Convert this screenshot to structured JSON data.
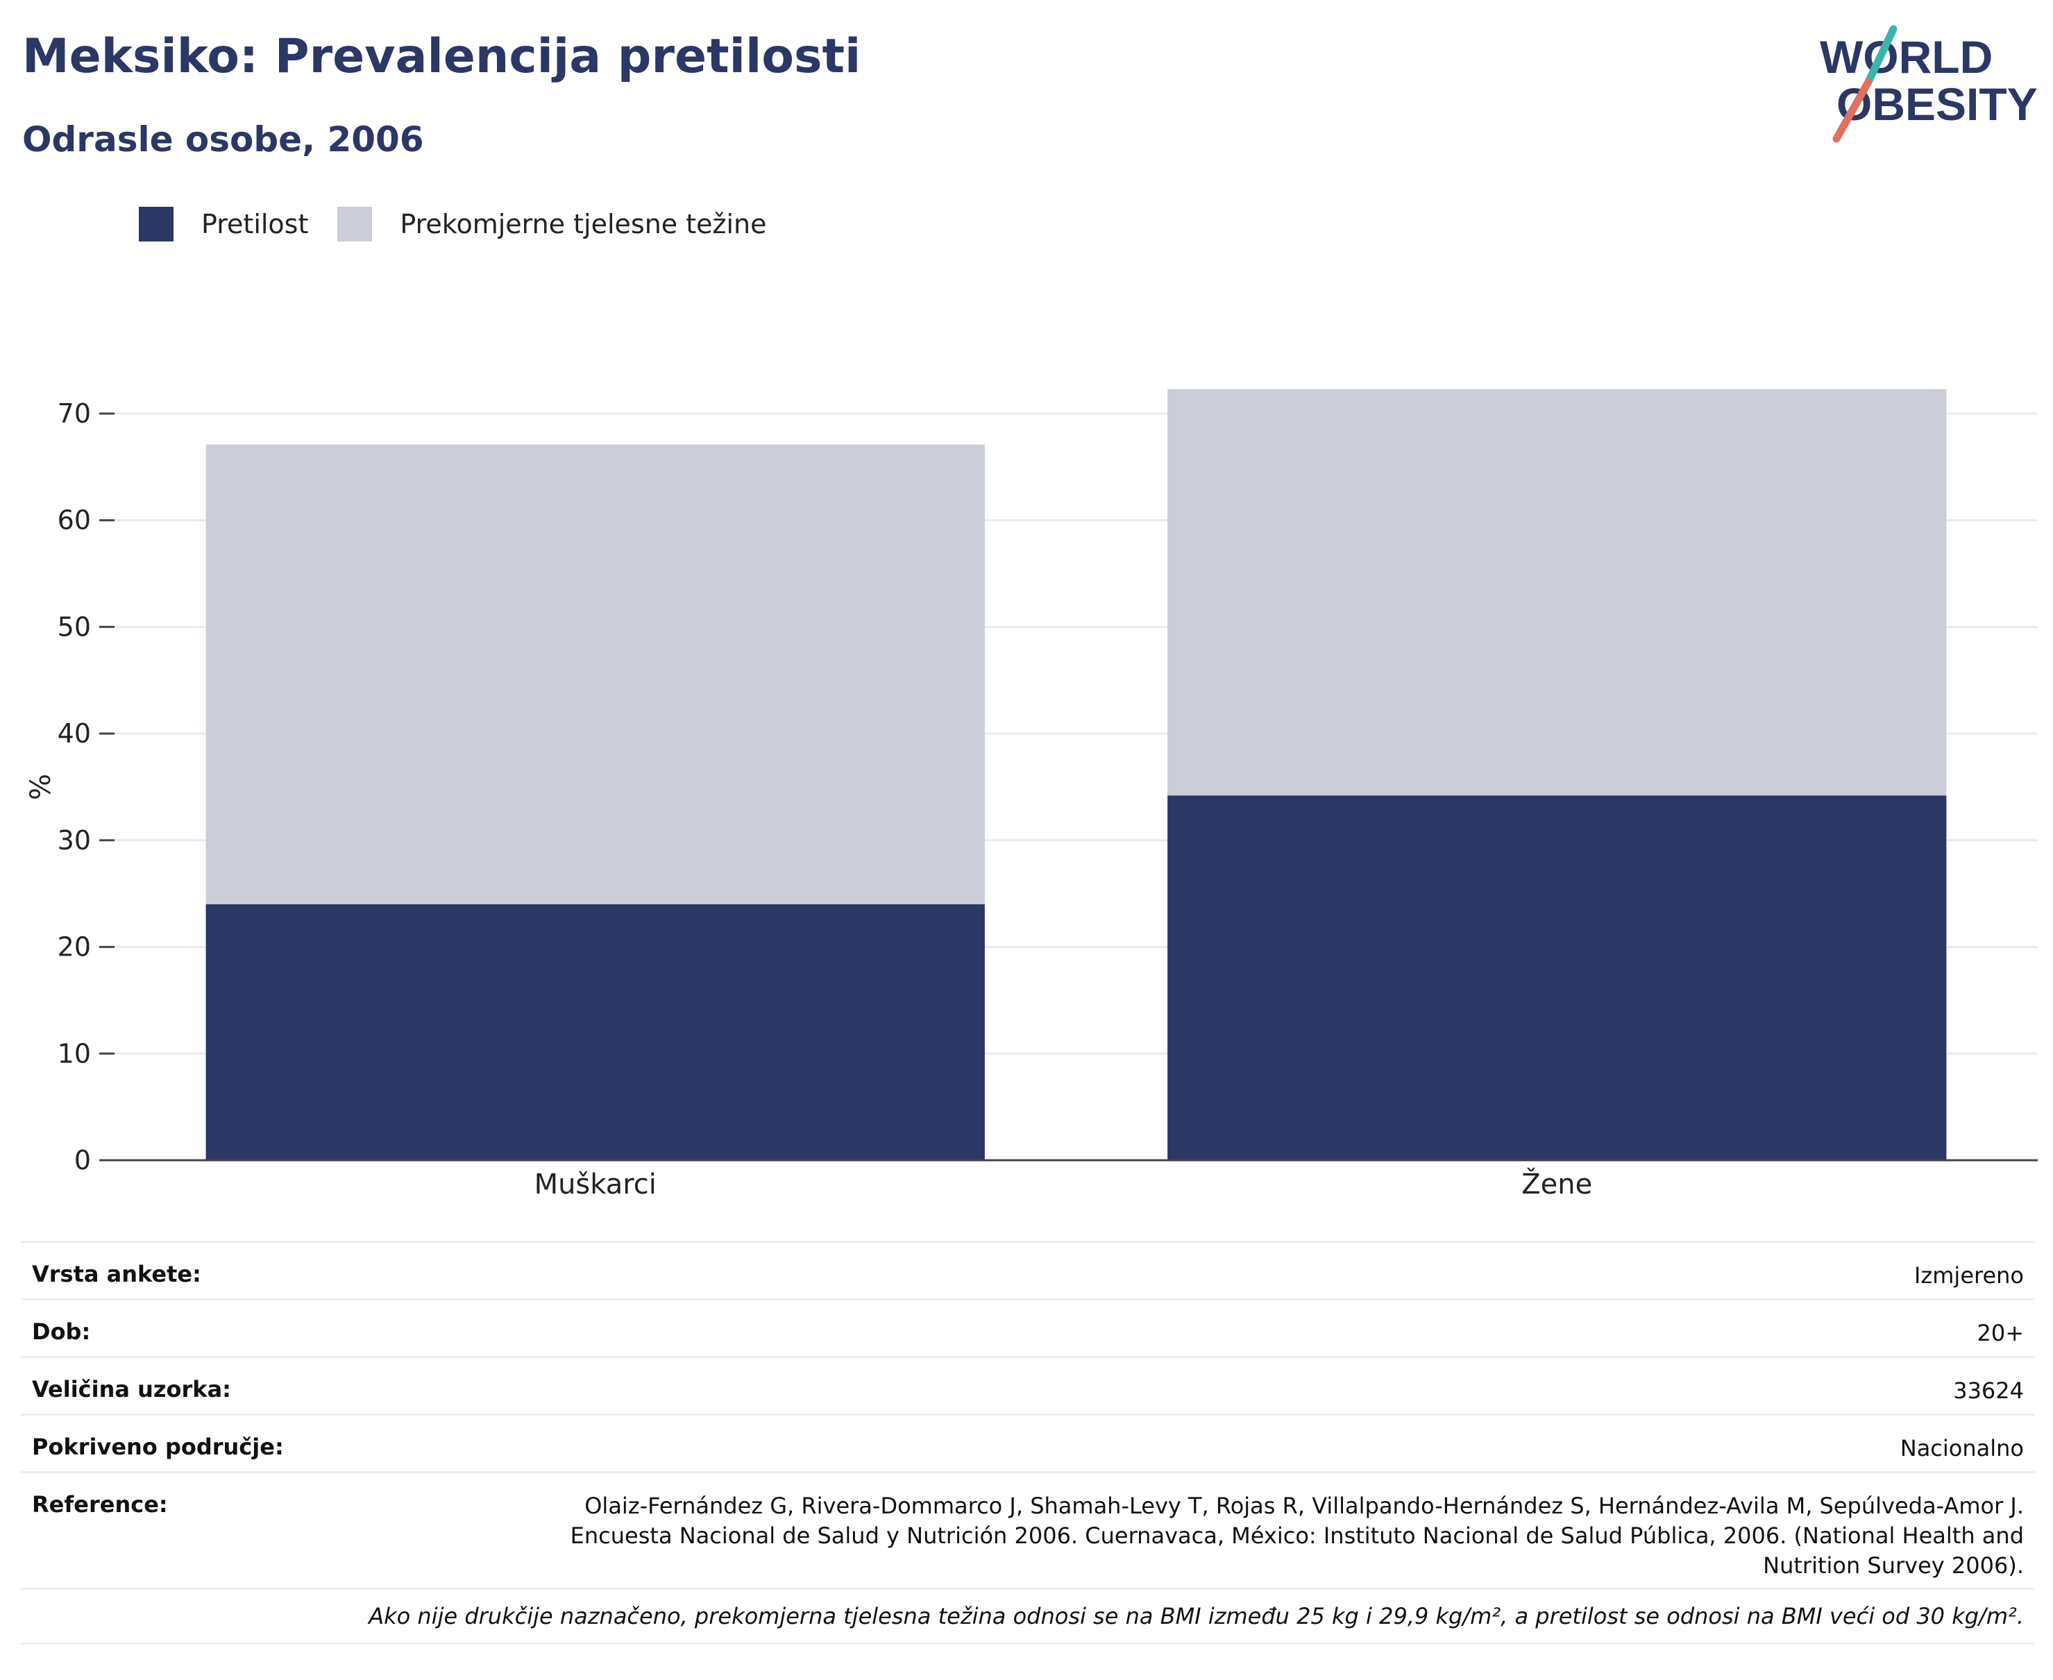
{
  "header": {
    "title": "Meksiko: Prevalencija pretilosti",
    "subtitle": "Odrasle osobe, 2006"
  },
  "logo": {
    "line1": "WORLD",
    "line2": "OBESITY",
    "text_color": "#2b3765",
    "slash_top_color": "#3bb4b0",
    "slash_bottom_color": "#e07060"
  },
  "legend": {
    "items": [
      {
        "label": "Pretilost",
        "color": "#2b3765"
      },
      {
        "label": "Prekomjerne tjelesne težine",
        "color": "#cbcdd8"
      }
    ]
  },
  "chart_data": {
    "type": "bar",
    "stacked": true,
    "categories": [
      "Muškarci",
      "Žene"
    ],
    "series": [
      {
        "name": "Pretilost",
        "color": "#2b3765",
        "values": [
          24.0,
          34.2
        ]
      },
      {
        "name": "Prekomjerne tjelesne težine",
        "color": "#cbcdd8",
        "values": [
          43.1,
          38.1
        ]
      }
    ],
    "ylabel": "%",
    "ylim": [
      0,
      70
    ],
    "yticks": [
      0,
      10,
      20,
      30,
      40,
      50,
      60,
      70
    ],
    "grid": true,
    "legend_position": "top-left"
  },
  "info": {
    "rows": [
      {
        "key": "Vrsta ankete:",
        "value": "Izmjereno"
      },
      {
        "key": "Dob:",
        "value": "20+"
      },
      {
        "key": "Veličina uzorka:",
        "value": "33624"
      },
      {
        "key": "Pokriveno područje:",
        "value": "Nacionalno"
      }
    ],
    "reference_key": "Reference:",
    "reference_value": "Olaiz-Fernández G, Rivera-Dommarco J, Shamah-Levy T, Rojas R, Villalpando-Hernández S, Hernández-Avila M, Sepúlveda-Amor J. Encuesta Nacional de Salud y Nutrición 2006. Cuernavaca, México: Instituto Nacional de Salud Pública, 2006. (National Health and Nutrition Survey 2006).",
    "footnote": "Ako nije drukčije naznačeno, prekomjerna tjelesna težina odnosi se na BMI između 25 kg i 29,9 kg/m², a pretilost se odnosi na BMI veći od 30 kg/m²."
  }
}
